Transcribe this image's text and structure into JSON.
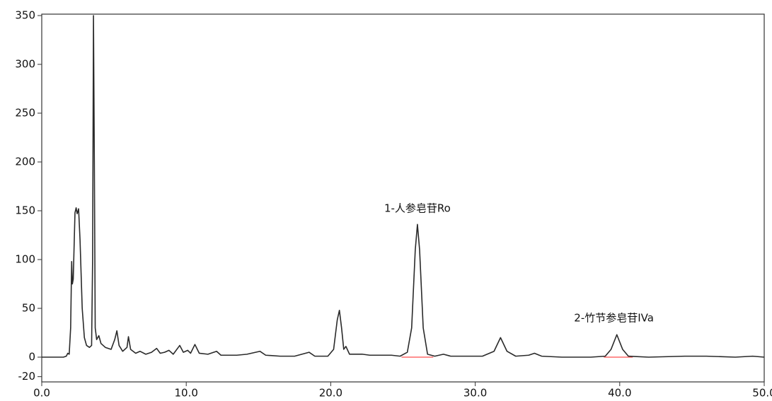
{
  "chart_data": {
    "type": "line",
    "xlim": [
      0,
      50
    ],
    "ylim": [
      -25,
      350
    ],
    "xticks": [
      {
        "value": 0,
        "label": "0.0"
      },
      {
        "value": 10,
        "label": "10.0"
      },
      {
        "value": 20,
        "label": "20.0"
      },
      {
        "value": 30,
        "label": "30.0"
      },
      {
        "value": 40,
        "label": "40.0"
      },
      {
        "value": 50,
        "label": "50.0"
      }
    ],
    "yticks": [
      -20,
      0,
      50,
      100,
      150,
      200,
      250,
      300,
      350
    ],
    "grid": false,
    "series": [
      {
        "color": "#2a2a2a",
        "x": [
          0,
          1.5,
          1.7,
          1.8,
          1.9,
          2.0,
          2.07,
          2.12,
          2.18,
          2.3,
          2.38,
          2.45,
          2.55,
          2.65,
          2.8,
          2.95,
          3.1,
          3.3,
          3.45,
          3.52,
          3.58,
          3.64,
          3.7,
          3.8,
          3.95,
          4.1,
          4.4,
          4.8,
          5.05,
          5.2,
          5.35,
          5.6,
          5.9,
          6.0,
          6.15,
          6.5,
          6.8,
          7.2,
          7.6,
          7.95,
          8.2,
          8.5,
          8.8,
          9.1,
          9.55,
          9.8,
          10.1,
          10.3,
          10.6,
          10.9,
          11.5,
          12.1,
          12.4,
          13.5,
          14.2,
          15.1,
          15.5,
          16.5,
          17.5,
          18.5,
          18.9,
          19.8,
          20.2,
          20.45,
          20.6,
          20.75,
          20.9,
          21.05,
          21.3,
          22.2,
          22.7,
          23.5,
          24.2,
          24.8,
          25.3,
          25.6,
          25.85,
          26.0,
          26.15,
          26.4,
          26.7,
          27.2,
          27.8,
          28.3,
          29.2,
          30.5,
          31.3,
          31.75,
          32.2,
          32.8,
          33.7,
          34.1,
          34.6,
          36,
          38,
          39.0,
          39.4,
          39.8,
          40.2,
          40.6,
          42,
          44.5,
          46,
          48,
          49.2,
          50
        ],
        "values": [
          0,
          0,
          1,
          4,
          3,
          30,
          98,
          75,
          80,
          148,
          153,
          147,
          152,
          120,
          50,
          20,
          12,
          10,
          12,
          100,
          350,
          200,
          30,
          18,
          22,
          14,
          10,
          8,
          18,
          27,
          12,
          6,
          10,
          21,
          8,
          4,
          6,
          3,
          5,
          9,
          4,
          5,
          7,
          3,
          12,
          5,
          7,
          4,
          13,
          4,
          3,
          6,
          2,
          2,
          3,
          6,
          2,
          1,
          1,
          5,
          1,
          1,
          8,
          38,
          48,
          30,
          8,
          11,
          3,
          3,
          2,
          2,
          2,
          1,
          5,
          30,
          110,
          136,
          110,
          30,
          3,
          1,
          3,
          1,
          1,
          1,
          6,
          20,
          6,
          1,
          2,
          4,
          1,
          0,
          0,
          1,
          8,
          23,
          8,
          1,
          0,
          1,
          1,
          0,
          1,
          0
        ]
      }
    ],
    "baselines": {
      "color": "#ff6b6b",
      "items": [
        {
          "x": [
            24.9,
            27.1
          ],
          "values": [
            0,
            0
          ]
        },
        {
          "x": [
            38.9,
            40.9
          ],
          "values": [
            0,
            0
          ]
        }
      ]
    },
    "annotations": [
      {
        "text": "1-人参皂苷Ro",
        "x": 26.0,
        "y": 152
      },
      {
        "text": "2-竹节参皂苷IVa",
        "x": 39.6,
        "y": 40
      }
    ]
  }
}
